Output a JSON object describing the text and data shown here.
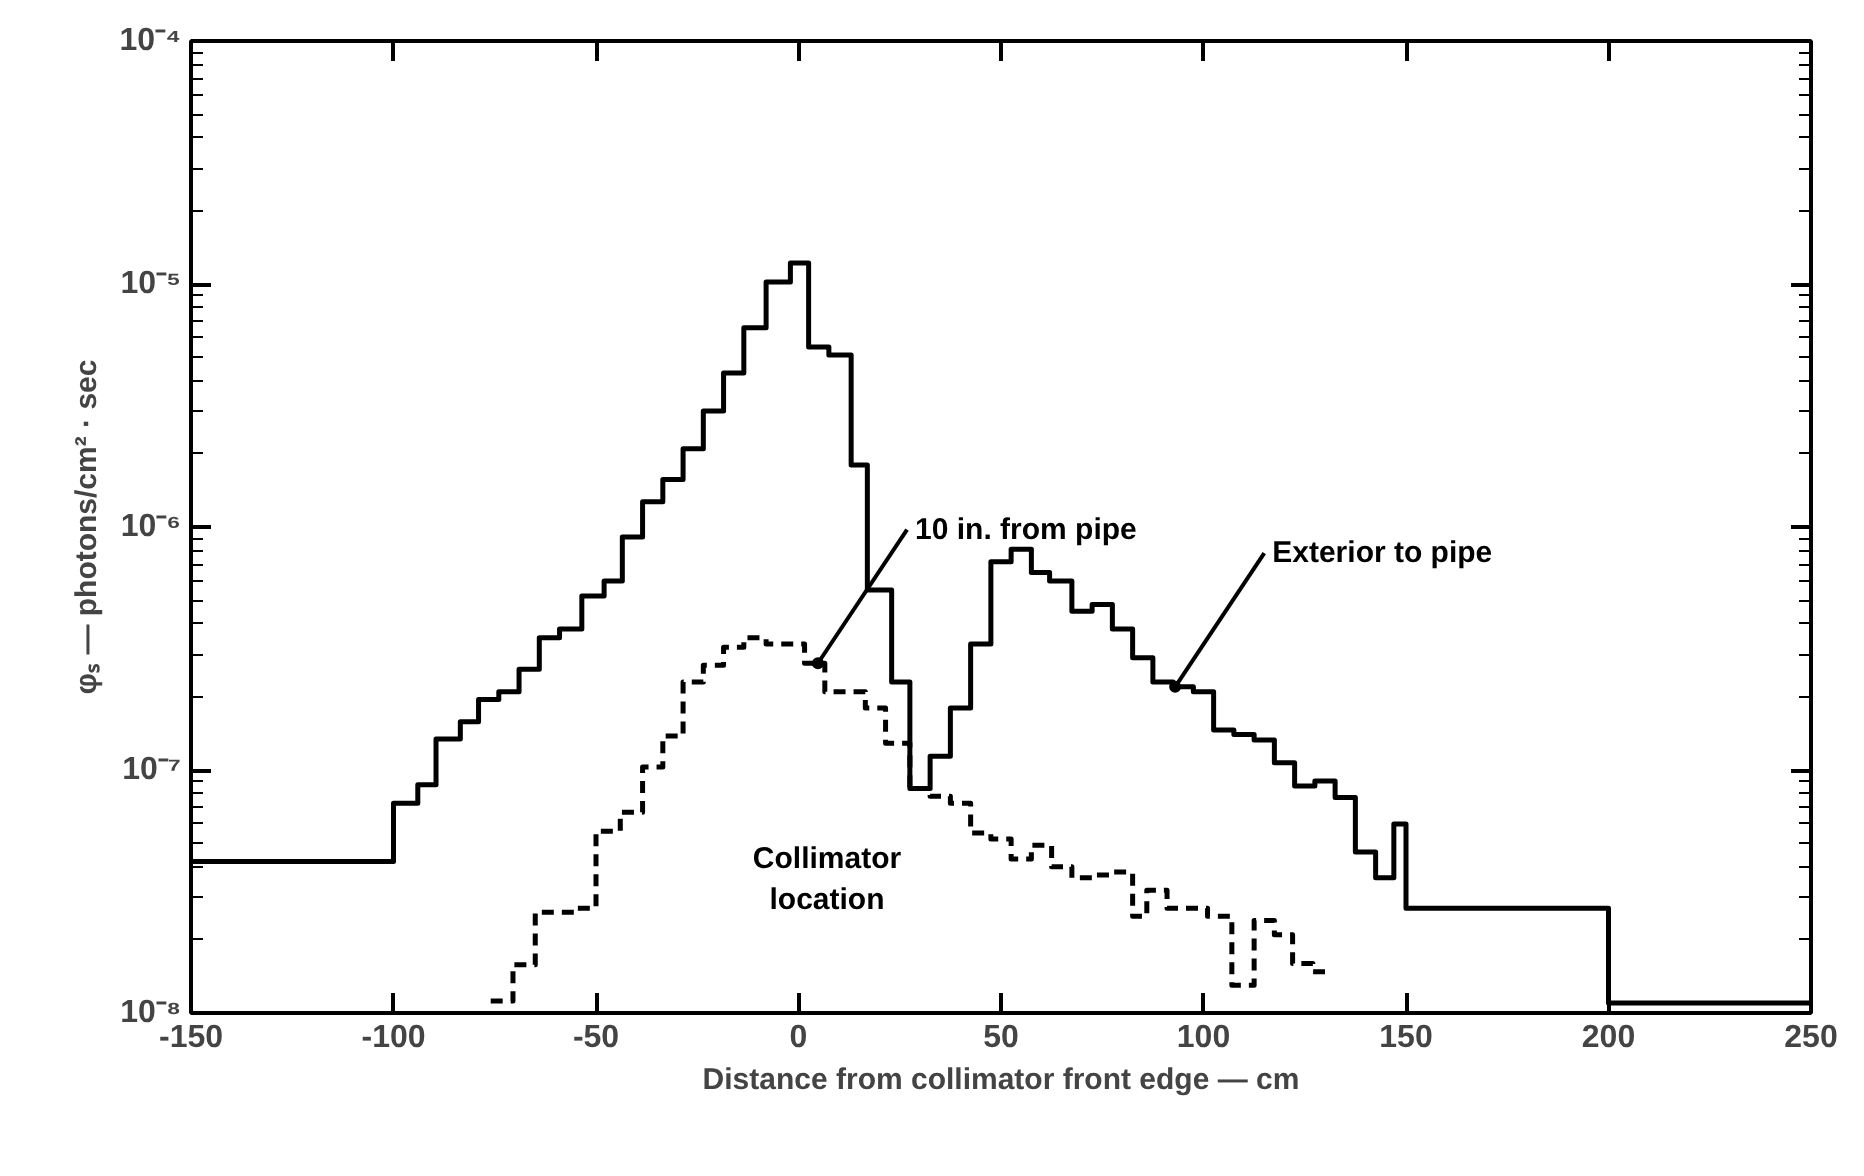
{
  "chart_data": {
    "type": "step",
    "xlabel": "Distance from collimator front edge — cm",
    "ylabel": "φₛ — photons/cm² · sec",
    "log": "y",
    "grid": false,
    "marker": "none",
    "xlim": [
      -150,
      250
    ],
    "xticks": [
      -150,
      -100,
      -50,
      0,
      50,
      100,
      150,
      200,
      250
    ],
    "ylim": [
      1e-08,
      0.0001
    ],
    "yticks": [
      {
        "value": 1e-08,
        "label": "10⁻⁸"
      },
      {
        "value": 1e-07,
        "label": "10⁻⁷"
      },
      {
        "value": 1e-06,
        "label": "10⁻⁶"
      },
      {
        "value": 1e-05,
        "label": "10⁻⁵"
      },
      {
        "value": 0.0001,
        "label": "10⁻⁴"
      }
    ],
    "series": [
      {
        "color": "#000000",
        "line_style": "solid",
        "x": [
          -150,
          -100,
          -94,
          -89.5,
          -83.5,
          -79,
          -74,
          -69,
          -64,
          -59,
          -53.5,
          -48,
          -43.5,
          -38.5,
          -33.5,
          -28.5,
          -23.5,
          -18.5,
          -13.5,
          -8,
          -2,
          2.5,
          7.5,
          13,
          17,
          23,
          27.5,
          32.5,
          37.5,
          42.5,
          47.5,
          52.5,
          57.5,
          62,
          67.5,
          72.5,
          77.5,
          82.5,
          87.5,
          92.5,
          97.5,
          102.5,
          107.5,
          112.5,
          117.5,
          122.5,
          127.5,
          132.5,
          137.5,
          142.5,
          147,
          150,
          200,
          250
        ],
        "values": [
          4.2e-08,
          7.3e-08,
          8.7e-08,
          1.34e-07,
          1.58e-07,
          1.95e-07,
          2.1e-07,
          2.6e-07,
          3.5e-07,
          3.8e-07,
          5.2e-07,
          6e-07,
          9.1e-07,
          1.27e-06,
          1.57e-06,
          2.1e-06,
          3e-06,
          4.3e-06,
          6.6e-06,
          1.02e-05,
          1.22e-05,
          5.5e-06,
          5.1e-06,
          1.8e-06,
          5.5e-07,
          2.3e-07,
          8.4e-08,
          1.14e-07,
          1.8e-07,
          3.3e-07,
          7.2e-07,
          8.1e-07,
          6.5e-07,
          6e-07,
          4.5e-07,
          4.8e-07,
          3.8e-07,
          2.9e-07,
          2.3e-07,
          2.2e-07,
          2.1e-07,
          1.46e-07,
          1.4e-07,
          1.33e-07,
          1.07e-07,
          8.6e-08,
          9e-08,
          7.7e-08,
          4.6e-08,
          3.6e-08,
          6e-08,
          2.7e-08,
          1.1e-08,
          1.1e-08
        ]
      },
      {
        "color": "#000000",
        "line_style": "dashed",
        "x": [
          -76,
          -70.5,
          -65,
          -55,
          -50,
          -44,
          -38.5,
          -33.5,
          -28.5,
          -23.5,
          -18.5,
          -13.5,
          -8,
          1.5,
          6.5,
          16.5,
          21.5,
          27.5,
          32.5,
          37.5,
          42.5,
          47.5,
          52.5,
          57.5,
          62.5,
          67.5,
          72.5,
          77.5,
          82.5,
          86,
          91,
          101,
          107,
          112.5,
          117.5,
          122,
          127,
          130
        ],
        "values": [
          1.12e-08,
          1.58e-08,
          2.6e-08,
          2.7e-08,
          5.6e-08,
          6.7e-08,
          1.03e-07,
          1.38e-07,
          2.3e-07,
          2.7e-07,
          3.2e-07,
          3.5e-07,
          3.3e-07,
          2.75e-07,
          2.1e-07,
          1.8e-07,
          1.29e-07,
          8.4e-08,
          7.8e-08,
          7.3e-08,
          5.5e-08,
          5.2e-08,
          4.3e-08,
          4.9e-08,
          4e-08,
          3.6e-08,
          3.7e-08,
          3.8e-08,
          2.5e-08,
          3.2e-08,
          2.7e-08,
          2.5e-08,
          1.3e-08,
          2.4e-08,
          2.1e-08,
          1.6e-08,
          1.48e-08,
          1.48e-08
        ]
      }
    ],
    "annotations": [
      {
        "text": "10 in. from pipe",
        "x": 4.8,
        "y": 2.75e-07
      },
      {
        "text": "Exterior to pipe",
        "x": 93,
        "y": 2.2e-07
      },
      "Collimator location"
    ]
  }
}
